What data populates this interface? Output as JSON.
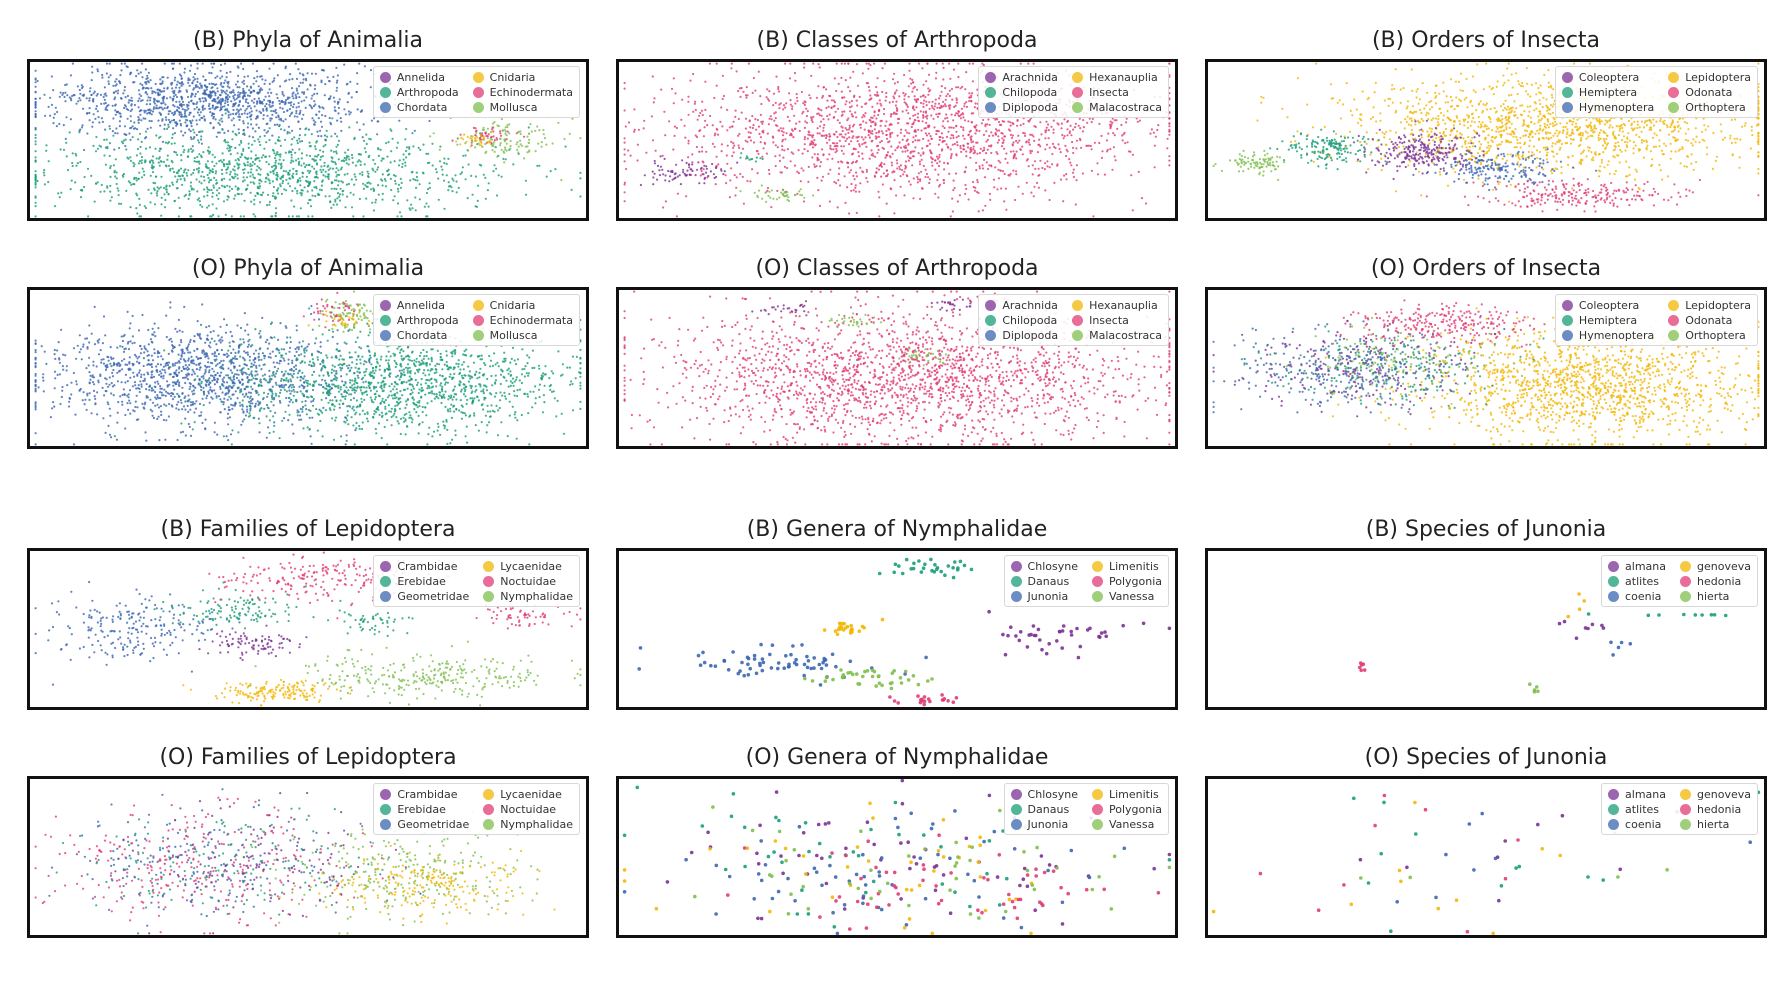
{
  "chart_data": [
    {
      "type": "scatter",
      "title": "(B) Phyla of Animalia",
      "legend": [
        "Annelida",
        "Arthropoda",
        "Chordata",
        "Cnidaria",
        "Echinodermata",
        "Mollusca"
      ],
      "legend_location": "top-right",
      "grid": false,
      "clusters": [
        {
          "class": "Chordata",
          "cx": 0.32,
          "cy": 0.25,
          "rx": 0.3,
          "ry": 0.22,
          "n": 1200
        },
        {
          "class": "Arthropoda",
          "cx": 0.42,
          "cy": 0.7,
          "rx": 0.4,
          "ry": 0.27,
          "n": 1200
        },
        {
          "class": "Mollusca",
          "cx": 0.86,
          "cy": 0.5,
          "rx": 0.1,
          "ry": 0.12,
          "n": 120
        },
        {
          "class": "Echinodermata",
          "cx": 0.82,
          "cy": 0.47,
          "rx": 0.05,
          "ry": 0.05,
          "n": 40
        },
        {
          "class": "Cnidaria",
          "cx": 0.8,
          "cy": 0.5,
          "rx": 0.04,
          "ry": 0.05,
          "n": 30
        }
      ]
    },
    {
      "type": "scatter",
      "title": "(B) Classes of Arthropoda",
      "legend": [
        "Arachnida",
        "Chilopoda",
        "Diplopoda",
        "Hexanauplia",
        "Insecta",
        "Malacostraca"
      ],
      "legend_location": "top-right",
      "grid": false,
      "clusters": [
        {
          "class": "Insecta",
          "cx": 0.52,
          "cy": 0.45,
          "rx": 0.42,
          "ry": 0.42,
          "n": 1800
        },
        {
          "class": "Arachnida",
          "cx": 0.12,
          "cy": 0.7,
          "rx": 0.08,
          "ry": 0.08,
          "n": 80
        },
        {
          "class": "Malacostraca",
          "cx": 0.29,
          "cy": 0.85,
          "rx": 0.05,
          "ry": 0.05,
          "n": 40
        },
        {
          "class": "Chilopoda",
          "cx": 0.24,
          "cy": 0.62,
          "rx": 0.03,
          "ry": 0.03,
          "n": 12
        }
      ]
    },
    {
      "type": "scatter",
      "title": "(B) Orders of Insecta",
      "legend": [
        "Coleoptera",
        "Hemiptera",
        "Hymenoptera",
        "Lepidoptera",
        "Odonata",
        "Orthoptera"
      ],
      "legend_location": "top-right",
      "grid": false,
      "clusters": [
        {
          "class": "Lepidoptera",
          "cx": 0.62,
          "cy": 0.4,
          "rx": 0.38,
          "ry": 0.3,
          "n": 1400
        },
        {
          "class": "Coleoptera",
          "cx": 0.39,
          "cy": 0.58,
          "rx": 0.1,
          "ry": 0.12,
          "n": 250
        },
        {
          "class": "Hemiptera",
          "cx": 0.22,
          "cy": 0.55,
          "rx": 0.08,
          "ry": 0.1,
          "n": 150
        },
        {
          "class": "Hymenoptera",
          "cx": 0.52,
          "cy": 0.68,
          "rx": 0.1,
          "ry": 0.1,
          "n": 180
        },
        {
          "class": "Orthoptera",
          "cx": 0.09,
          "cy": 0.64,
          "rx": 0.06,
          "ry": 0.07,
          "n": 90
        },
        {
          "class": "Odonata",
          "cx": 0.67,
          "cy": 0.85,
          "rx": 0.18,
          "ry": 0.09,
          "n": 220
        }
      ]
    },
    {
      "type": "scatter",
      "title": "(O) Phyla of Animalia",
      "legend": [
        "Annelida",
        "Arthropoda",
        "Chordata",
        "Cnidaria",
        "Echinodermata",
        "Mollusca"
      ],
      "legend_location": "top-right",
      "grid": false,
      "clusters": [
        {
          "class": "Chordata",
          "cx": 0.3,
          "cy": 0.55,
          "rx": 0.28,
          "ry": 0.32,
          "n": 1300
        },
        {
          "class": "Arthropoda",
          "cx": 0.66,
          "cy": 0.6,
          "rx": 0.3,
          "ry": 0.32,
          "n": 1300
        },
        {
          "class": "Mollusca",
          "cx": 0.58,
          "cy": 0.16,
          "rx": 0.06,
          "ry": 0.1,
          "n": 80
        },
        {
          "class": "Echinodermata",
          "cx": 0.54,
          "cy": 0.14,
          "rx": 0.04,
          "ry": 0.08,
          "n": 40
        },
        {
          "class": "Cnidaria",
          "cx": 0.56,
          "cy": 0.2,
          "rx": 0.04,
          "ry": 0.06,
          "n": 30
        }
      ]
    },
    {
      "type": "scatter",
      "title": "(O) Classes of Arthropoda",
      "legend": [
        "Arachnida",
        "Chilopoda",
        "Diplopoda",
        "Hexanauplia",
        "Insecta",
        "Malacostraca"
      ],
      "legend_location": "top-right",
      "grid": false,
      "clusters": [
        {
          "class": "Insecta",
          "cx": 0.52,
          "cy": 0.55,
          "rx": 0.44,
          "ry": 0.42,
          "n": 2000
        },
        {
          "class": "Arachnida",
          "cx": 0.3,
          "cy": 0.12,
          "rx": 0.04,
          "ry": 0.04,
          "n": 25
        },
        {
          "class": "Arachnida",
          "cx": 0.6,
          "cy": 0.1,
          "rx": 0.05,
          "ry": 0.04,
          "n": 25
        },
        {
          "class": "Malacostraca",
          "cx": 0.42,
          "cy": 0.2,
          "rx": 0.05,
          "ry": 0.04,
          "n": 30
        },
        {
          "class": "Malacostraca",
          "cx": 0.55,
          "cy": 0.42,
          "rx": 0.05,
          "ry": 0.05,
          "n": 30
        }
      ]
    },
    {
      "type": "scatter",
      "title": "(O) Orders of Insecta",
      "legend": [
        "Coleoptera",
        "Hemiptera",
        "Hymenoptera",
        "Lepidoptera",
        "Odonata",
        "Orthoptera"
      ],
      "legend_location": "top-right",
      "grid": false,
      "clusters": [
        {
          "class": "Lepidoptera",
          "cx": 0.68,
          "cy": 0.6,
          "rx": 0.3,
          "ry": 0.35,
          "n": 1400
        },
        {
          "class": "Odonata",
          "cx": 0.42,
          "cy": 0.22,
          "rx": 0.15,
          "ry": 0.12,
          "n": 250
        },
        {
          "class": "Coleoptera",
          "cx": 0.28,
          "cy": 0.5,
          "rx": 0.2,
          "ry": 0.25,
          "n": 250
        },
        {
          "class": "Hemiptera",
          "cx": 0.3,
          "cy": 0.48,
          "rx": 0.2,
          "ry": 0.25,
          "n": 200
        },
        {
          "class": "Hymenoptera",
          "cx": 0.25,
          "cy": 0.52,
          "rx": 0.2,
          "ry": 0.25,
          "n": 250
        },
        {
          "class": "Orthoptera",
          "cx": 0.35,
          "cy": 0.45,
          "rx": 0.18,
          "ry": 0.2,
          "n": 120
        }
      ]
    },
    {
      "type": "scatter",
      "title": "(B) Families of Lepidoptera",
      "legend": [
        "Crambidae",
        "Erebidae",
        "Geometridae",
        "Lycaenidae",
        "Noctuidae",
        "Nymphalidae"
      ],
      "legend_location": "top-right",
      "grid": false,
      "clusters": [
        {
          "class": "Geometridae",
          "cx": 0.18,
          "cy": 0.5,
          "rx": 0.14,
          "ry": 0.2,
          "n": 220
        },
        {
          "class": "Erebidae",
          "cx": 0.36,
          "cy": 0.38,
          "rx": 0.12,
          "ry": 0.12,
          "n": 120
        },
        {
          "class": "Noctuidae",
          "cx": 0.52,
          "cy": 0.18,
          "rx": 0.18,
          "ry": 0.14,
          "n": 200
        },
        {
          "class": "Crambidae",
          "cx": 0.4,
          "cy": 0.6,
          "rx": 0.08,
          "ry": 0.08,
          "n": 90
        },
        {
          "class": "Nymphalidae",
          "cx": 0.72,
          "cy": 0.8,
          "rx": 0.22,
          "ry": 0.14,
          "n": 280
        },
        {
          "class": "Lycaenidae",
          "cx": 0.44,
          "cy": 0.9,
          "rx": 0.12,
          "ry": 0.07,
          "n": 160
        },
        {
          "class": "Noctuidae",
          "cx": 0.88,
          "cy": 0.42,
          "rx": 0.08,
          "ry": 0.06,
          "n": 60
        },
        {
          "class": "Erebidae",
          "cx": 0.62,
          "cy": 0.45,
          "rx": 0.06,
          "ry": 0.08,
          "n": 50
        }
      ]
    },
    {
      "type": "scatter",
      "title": "(B) Genera of Nymphalidae",
      "legend": [
        "Chlosyne",
        "Danaus",
        "Junonia",
        "Limenitis",
        "Polygonia",
        "Vanessa"
      ],
      "legend_location": "top-right",
      "grid": false,
      "clusters": [
        {
          "class": "Junonia",
          "cx": 0.28,
          "cy": 0.72,
          "rx": 0.2,
          "ry": 0.1,
          "n": 70
        },
        {
          "class": "Vanessa",
          "cx": 0.45,
          "cy": 0.8,
          "rx": 0.1,
          "ry": 0.08,
          "n": 40
        },
        {
          "class": "Limenitis",
          "cx": 0.41,
          "cy": 0.5,
          "rx": 0.05,
          "ry": 0.04,
          "n": 25
        },
        {
          "class": "Danaus",
          "cx": 0.55,
          "cy": 0.1,
          "rx": 0.1,
          "ry": 0.06,
          "n": 30
        },
        {
          "class": "Chlosyne",
          "cx": 0.8,
          "cy": 0.55,
          "rx": 0.12,
          "ry": 0.12,
          "n": 40
        },
        {
          "class": "Polygonia",
          "cx": 0.57,
          "cy": 0.95,
          "rx": 0.06,
          "ry": 0.03,
          "n": 20
        }
      ]
    },
    {
      "type": "scatter",
      "title": "(B) Species of Junonia",
      "legend": [
        "almana",
        "atlites",
        "coenia",
        "genoveva",
        "hedonia",
        "hierta"
      ],
      "legend_location": "top-right",
      "grid": false,
      "clusters": [
        {
          "class": "atlites",
          "cx": 0.85,
          "cy": 0.41,
          "rx": 0.12,
          "ry": 0.01,
          "n": 9
        },
        {
          "class": "hedonia",
          "cx": 0.27,
          "cy": 0.75,
          "rx": 0.03,
          "ry": 0.06,
          "n": 6
        },
        {
          "class": "almana",
          "cx": 0.68,
          "cy": 0.5,
          "rx": 0.05,
          "ry": 0.12,
          "n": 8
        },
        {
          "class": "coenia",
          "cx": 0.73,
          "cy": 0.6,
          "rx": 0.05,
          "ry": 0.1,
          "n": 5
        },
        {
          "class": "hierta",
          "cx": 0.58,
          "cy": 0.88,
          "rx": 0.02,
          "ry": 0.06,
          "n": 5
        },
        {
          "class": "genoveva",
          "cx": 0.68,
          "cy": 0.36,
          "rx": 0.06,
          "ry": 0.06,
          "n": 4
        }
      ]
    },
    {
      "type": "scatter",
      "title": "(O) Families of Lepidoptera",
      "legend": [
        "Crambidae",
        "Erebidae",
        "Geometridae",
        "Lycaenidae",
        "Noctuidae",
        "Nymphalidae"
      ],
      "legend_location": "top-right",
      "grid": false,
      "clusters": [
        {
          "class": "Noctuidae",
          "cx": 0.3,
          "cy": 0.55,
          "rx": 0.26,
          "ry": 0.35,
          "n": 300
        },
        {
          "class": "Geometridae",
          "cx": 0.32,
          "cy": 0.55,
          "rx": 0.26,
          "ry": 0.33,
          "n": 200
        },
        {
          "class": "Erebidae",
          "cx": 0.35,
          "cy": 0.55,
          "rx": 0.25,
          "ry": 0.33,
          "n": 150
        },
        {
          "class": "Crambidae",
          "cx": 0.4,
          "cy": 0.5,
          "rx": 0.25,
          "ry": 0.35,
          "n": 120
        },
        {
          "class": "Nymphalidae",
          "cx": 0.68,
          "cy": 0.6,
          "rx": 0.22,
          "ry": 0.3,
          "n": 280
        },
        {
          "class": "Lycaenidae",
          "cx": 0.72,
          "cy": 0.68,
          "rx": 0.18,
          "ry": 0.18,
          "n": 200
        }
      ]
    },
    {
      "type": "scatter",
      "title": "(O) Genera of Nymphalidae",
      "legend": [
        "Chlosyne",
        "Danaus",
        "Junonia",
        "Limenitis",
        "Polygonia",
        "Vanessa"
      ],
      "legend_location": "top-right",
      "grid": false,
      "clusters": [
        {
          "class": "Chlosyne",
          "cx": 0.5,
          "cy": 0.5,
          "rx": 0.45,
          "ry": 0.42,
          "n": 60
        },
        {
          "class": "Danaus",
          "cx": 0.4,
          "cy": 0.45,
          "rx": 0.35,
          "ry": 0.4,
          "n": 40
        },
        {
          "class": "Junonia",
          "cx": 0.45,
          "cy": 0.6,
          "rx": 0.4,
          "ry": 0.38,
          "n": 60
        },
        {
          "class": "Limenitis",
          "cx": 0.5,
          "cy": 0.5,
          "rx": 0.4,
          "ry": 0.4,
          "n": 40
        },
        {
          "class": "Polygonia",
          "cx": 0.6,
          "cy": 0.7,
          "rx": 0.35,
          "ry": 0.3,
          "n": 55
        },
        {
          "class": "Vanessa",
          "cx": 0.5,
          "cy": 0.55,
          "rx": 0.4,
          "ry": 0.4,
          "n": 45
        }
      ]
    },
    {
      "type": "scatter",
      "title": "(O) Species of Junonia",
      "legend": [
        "almana",
        "atlites",
        "coenia",
        "genoveva",
        "hedonia",
        "hierta"
      ],
      "legend_location": "top-right",
      "grid": false,
      "clusters": [
        {
          "class": "almana",
          "cx": 0.5,
          "cy": 0.55,
          "rx": 0.45,
          "ry": 0.38,
          "n": 8
        },
        {
          "class": "atlites",
          "cx": 0.5,
          "cy": 0.5,
          "rx": 0.45,
          "ry": 0.4,
          "n": 12
        },
        {
          "class": "coenia",
          "cx": 0.5,
          "cy": 0.55,
          "rx": 0.45,
          "ry": 0.4,
          "n": 8
        },
        {
          "class": "genoveva",
          "cx": 0.45,
          "cy": 0.55,
          "rx": 0.42,
          "ry": 0.4,
          "n": 10
        },
        {
          "class": "hedonia",
          "cx": 0.45,
          "cy": 0.5,
          "rx": 0.42,
          "ry": 0.4,
          "n": 10
        },
        {
          "class": "hierta",
          "cx": 0.5,
          "cy": 0.6,
          "rx": 0.42,
          "ry": 0.38,
          "n": 6
        }
      ]
    }
  ],
  "palette": [
    "#7b3294",
    "#1a9e77",
    "#3b67b0",
    "#f2b705",
    "#e03c75",
    "#7fbf4d"
  ]
}
